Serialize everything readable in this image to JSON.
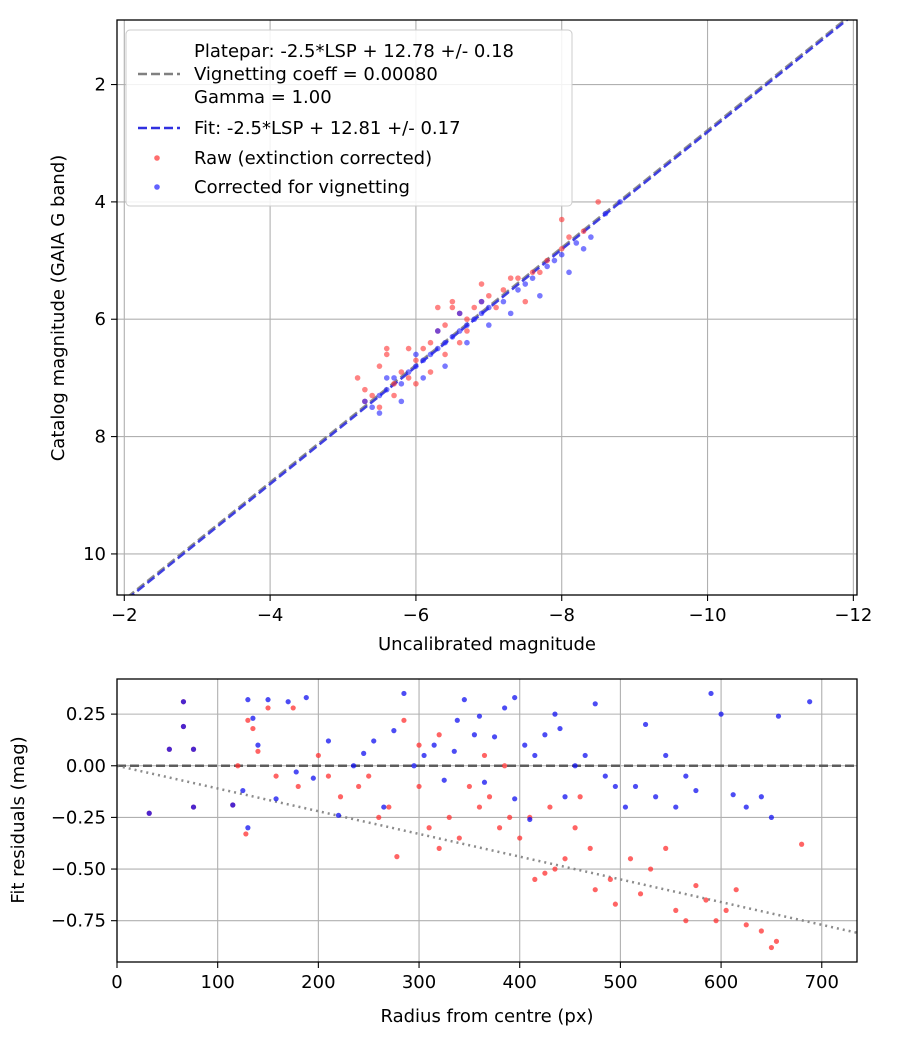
{
  "chart_data": [
    {
      "type": "scatter",
      "xlabel": "Uncalibrated magnitude",
      "ylabel": "Catalog magnitude (GAIA G band)",
      "xlim": [
        -1.9,
        -12.05
      ],
      "ylim": [
        10.7,
        0.9
      ],
      "x_inverted": true,
      "y_inverted": true,
      "xticks": [
        -2,
        -4,
        -6,
        -8,
        -10,
        -12
      ],
      "xtick_labels": [
        "−2",
        "−4",
        "−6",
        "−8",
        "−10",
        "−12"
      ],
      "yticks": [
        2,
        4,
        6,
        8,
        10
      ],
      "ytick_labels": [
        "2",
        "4",
        "6",
        "8",
        "10"
      ],
      "grid": true,
      "legend_position": "upper-left",
      "legend": {
        "platepar_lines": [
          "Platepar: -2.5*LSP + 12.78 +/- 0.18",
          "Vignetting coeff = 0.00080",
          "Gamma = 1.00"
        ],
        "fit": "Fit: -2.5*LSP + 12.81 +/- 0.17",
        "raw": "Raw (extinction corrected)",
        "corrected": "Corrected for vignetting"
      },
      "lines": [
        {
          "name": "Platepar",
          "slope": 1,
          "intercept": 12.78,
          "color": "#808080",
          "style": "dashed"
        },
        {
          "name": "Fit",
          "slope": 1,
          "intercept": 12.81,
          "color": "#3030e0",
          "style": "dashed"
        }
      ],
      "series": [
        {
          "name": "Raw (extinction corrected)",
          "color": "#ff3030",
          "points": [
            [
              -5.2,
              7.0
            ],
            [
              -5.3,
              7.2
            ],
            [
              -5.4,
              7.3
            ],
            [
              -5.5,
              6.8
            ],
            [
              -5.6,
              6.6
            ],
            [
              -5.7,
              7.1
            ],
            [
              -5.8,
              6.9
            ],
            [
              -5.9,
              7.0
            ],
            [
              -6.0,
              6.7
            ],
            [
              -6.1,
              6.5
            ],
            [
              -6.2,
              6.4
            ],
            [
              -6.3,
              6.2
            ],
            [
              -6.4,
              6.1
            ],
            [
              -6.5,
              5.8
            ],
            [
              -6.6,
              5.9
            ],
            [
              -6.7,
              6.0
            ],
            [
              -6.8,
              5.8
            ],
            [
              -6.9,
              5.7
            ],
            [
              -7.0,
              5.6
            ],
            [
              -7.2,
              5.5
            ],
            [
              -7.4,
              5.3
            ],
            [
              -7.6,
              5.2
            ],
            [
              -7.8,
              5.0
            ],
            [
              -8.0,
              4.8
            ],
            [
              -8.1,
              4.6
            ],
            [
              -8.3,
              4.5
            ],
            [
              -8.0,
              4.3
            ],
            [
              -8.5,
              4.0
            ],
            [
              -5.5,
              7.5
            ],
            [
              -5.7,
              7.3
            ],
            [
              -6.0,
              7.1
            ],
            [
              -6.2,
              6.9
            ],
            [
              -6.4,
              6.6
            ],
            [
              -6.6,
              6.4
            ],
            [
              -5.3,
              7.4
            ],
            [
              -5.9,
              6.5
            ],
            [
              -6.3,
              5.8
            ],
            [
              -6.5,
              5.7
            ],
            [
              -7.3,
              5.3
            ],
            [
              -7.7,
              5.2
            ],
            [
              -5.6,
              6.5
            ],
            [
              -6.7,
              6.2
            ],
            [
              -7.1,
              5.8
            ],
            [
              -7.5,
              5.7
            ],
            [
              -6.9,
              5.4
            ]
          ]
        },
        {
          "name": "Corrected for vignetting",
          "color": "#2020ff",
          "points": [
            [
              -5.3,
              7.4
            ],
            [
              -5.4,
              7.5
            ],
            [
              -5.5,
              7.3
            ],
            [
              -5.6,
              7.2
            ],
            [
              -5.7,
              7.0
            ],
            [
              -5.8,
              7.1
            ],
            [
              -5.9,
              6.9
            ],
            [
              -6.0,
              6.8
            ],
            [
              -6.1,
              6.7
            ],
            [
              -6.2,
              6.6
            ],
            [
              -6.3,
              6.5
            ],
            [
              -6.4,
              6.4
            ],
            [
              -6.5,
              6.3
            ],
            [
              -6.6,
              6.2
            ],
            [
              -6.7,
              6.1
            ],
            [
              -6.8,
              6.0
            ],
            [
              -6.9,
              5.9
            ],
            [
              -7.0,
              5.8
            ],
            [
              -7.2,
              5.7
            ],
            [
              -7.4,
              5.5
            ],
            [
              -7.6,
              5.3
            ],
            [
              -7.8,
              5.1
            ],
            [
              -8.0,
              4.9
            ],
            [
              -8.2,
              4.7
            ],
            [
              -8.4,
              4.6
            ],
            [
              -8.6,
              4.2
            ],
            [
              -8.8,
              4.0
            ],
            [
              -5.5,
              7.6
            ],
            [
              -5.8,
              7.4
            ],
            [
              -6.1,
              7.0
            ],
            [
              -6.4,
              6.8
            ],
            [
              -6.7,
              6.4
            ],
            [
              -7.0,
              6.1
            ],
            [
              -7.3,
              5.9
            ],
            [
              -7.7,
              5.6
            ],
            [
              -8.1,
              5.2
            ],
            [
              -8.3,
              4.8
            ],
            [
              -5.6,
              7.0
            ],
            [
              -6.0,
              6.6
            ],
            [
              -6.3,
              6.2
            ],
            [
              -6.6,
              5.9
            ],
            [
              -6.9,
              5.7
            ],
            [
              -7.5,
              5.4
            ],
            [
              -7.9,
              5.0
            ]
          ]
        }
      ]
    },
    {
      "type": "scatter",
      "xlabel": "Radius from centre (px)",
      "ylabel": "Fit residuals (mag)",
      "xlim": [
        0,
        735
      ],
      "ylim": [
        -0.95,
        0.42
      ],
      "xticks": [
        0,
        100,
        200,
        300,
        400,
        500,
        600,
        700
      ],
      "xtick_labels": [
        "0",
        "100",
        "200",
        "300",
        "400",
        "500",
        "600",
        "700"
      ],
      "yticks": [
        0.25,
        0.0,
        -0.25,
        -0.5,
        -0.75
      ],
      "ytick_labels": [
        "0.25",
        "0.00",
        "−0.25",
        "−0.50",
        "−0.75"
      ],
      "grid": true,
      "lines": [
        {
          "name": "zero",
          "slope": 0,
          "intercept": 0,
          "color": "#505050",
          "style": "dashed"
        },
        {
          "name": "vignetting",
          "slope": -0.0011,
          "intercept": 0.0,
          "color": "#808080",
          "style": "dotted"
        }
      ],
      "series": [
        {
          "name": "Raw (extinction corrected)",
          "color": "#ff3030",
          "points": [
            [
              32,
              -0.23
            ],
            [
              52,
              0.08
            ],
            [
              66,
              0.31
            ],
            [
              66,
              0.19
            ],
            [
              76,
              0.08
            ],
            [
              76,
              -0.2
            ],
            [
              115,
              -0.19
            ],
            [
              120,
              0.0
            ],
            [
              128,
              -0.33
            ],
            [
              130,
              0.22
            ],
            [
              135,
              0.18
            ],
            [
              140,
              0.07
            ],
            [
              150,
              0.28
            ],
            [
              158,
              -0.05
            ],
            [
              175,
              0.28
            ],
            [
              180,
              -0.1
            ],
            [
              200,
              0.05
            ],
            [
              210,
              -0.05
            ],
            [
              222,
              -0.15
            ],
            [
              240,
              -0.1
            ],
            [
              250,
              -0.05
            ],
            [
              260,
              -0.25
            ],
            [
              270,
              -0.2
            ],
            [
              278,
              -0.44
            ],
            [
              285,
              0.22
            ],
            [
              300,
              -0.1
            ],
            [
              310,
              -0.3
            ],
            [
              320,
              -0.4
            ],
            [
              330,
              -0.25
            ],
            [
              340,
              -0.35
            ],
            [
              350,
              -0.1
            ],
            [
              360,
              -0.2
            ],
            [
              370,
              -0.15
            ],
            [
              380,
              -0.3
            ],
            [
              390,
              -0.25
            ],
            [
              400,
              -0.35
            ],
            [
              410,
              -0.25
            ],
            [
              415,
              -0.55
            ],
            [
              425,
              -0.52
            ],
            [
              435,
              -0.5
            ],
            [
              445,
              -0.45
            ],
            [
              455,
              -0.3
            ],
            [
              470,
              -0.4
            ],
            [
              475,
              -0.6
            ],
            [
              490,
              -0.55
            ],
            [
              495,
              -0.67
            ],
            [
              510,
              -0.45
            ],
            [
              520,
              -0.62
            ],
            [
              530,
              -0.5
            ],
            [
              545,
              -0.4
            ],
            [
              555,
              -0.7
            ],
            [
              565,
              -0.75
            ],
            [
              575,
              -0.58
            ],
            [
              585,
              -0.65
            ],
            [
              595,
              -0.75
            ],
            [
              605,
              -0.7
            ],
            [
              615,
              -0.6
            ],
            [
              625,
              -0.77
            ],
            [
              640,
              -0.8
            ],
            [
              650,
              -0.88
            ],
            [
              655,
              -0.85
            ],
            [
              680,
              -0.38
            ],
            [
              430,
              -0.2
            ],
            [
              460,
              -0.15
            ],
            [
              365,
              0.05
            ],
            [
              385,
              0.0
            ],
            [
              300,
              0.1
            ],
            [
              320,
              0.15
            ]
          ]
        },
        {
          "name": "Corrected for vignetting",
          "color": "#1010f0",
          "points": [
            [
              32,
              -0.23
            ],
            [
              52,
              0.08
            ],
            [
              66,
              0.31
            ],
            [
              66,
              0.19
            ],
            [
              76,
              0.08
            ],
            [
              76,
              -0.2
            ],
            [
              115,
              -0.19
            ],
            [
              125,
              -0.12
            ],
            [
              130,
              0.32
            ],
            [
              130,
              -0.3
            ],
            [
              135,
              0.23
            ],
            [
              140,
              0.1
            ],
            [
              150,
              0.32
            ],
            [
              158,
              -0.16
            ],
            [
              170,
              0.31
            ],
            [
              178,
              -0.03
            ],
            [
              188,
              0.33
            ],
            [
              195,
              -0.06
            ],
            [
              210,
              0.12
            ],
            [
              220,
              -0.24
            ],
            [
              235,
              0.0
            ],
            [
              245,
              0.06
            ],
            [
              255,
              0.12
            ],
            [
              265,
              -0.2
            ],
            [
              275,
              0.17
            ],
            [
              285,
              0.35
            ],
            [
              295,
              0.0
            ],
            [
              305,
              0.05
            ],
            [
              315,
              0.1
            ],
            [
              325,
              -0.07
            ],
            [
              335,
              0.07
            ],
            [
              345,
              0.32
            ],
            [
              355,
              0.15
            ],
            [
              365,
              -0.08
            ],
            [
              375,
              0.14
            ],
            [
              385,
              0.28
            ],
            [
              395,
              0.33
            ],
            [
              405,
              0.1
            ],
            [
              415,
              0.05
            ],
            [
              425,
              0.15
            ],
            [
              435,
              0.25
            ],
            [
              445,
              -0.15
            ],
            [
              455,
              0.0
            ],
            [
              465,
              0.05
            ],
            [
              475,
              0.3
            ],
            [
              485,
              -0.05
            ],
            [
              495,
              -0.1
            ],
            [
              505,
              -0.2
            ],
            [
              515,
              -0.1
            ],
            [
              525,
              0.2
            ],
            [
              535,
              -0.15
            ],
            [
              545,
              0.05
            ],
            [
              555,
              -0.2
            ],
            [
              565,
              -0.05
            ],
            [
              575,
              -0.12
            ],
            [
              590,
              0.35
            ],
            [
              600,
              0.25
            ],
            [
              612,
              -0.14
            ],
            [
              625,
              -0.2
            ],
            [
              640,
              -0.15
            ],
            [
              650,
              -0.25
            ],
            [
              657,
              0.24
            ],
            [
              688,
              0.31
            ],
            [
              410,
              -0.26
            ],
            [
              395,
              -0.16
            ],
            [
              440,
              0.18
            ],
            [
              360,
              0.24
            ],
            [
              338,
              0.22
            ]
          ]
        }
      ]
    }
  ]
}
